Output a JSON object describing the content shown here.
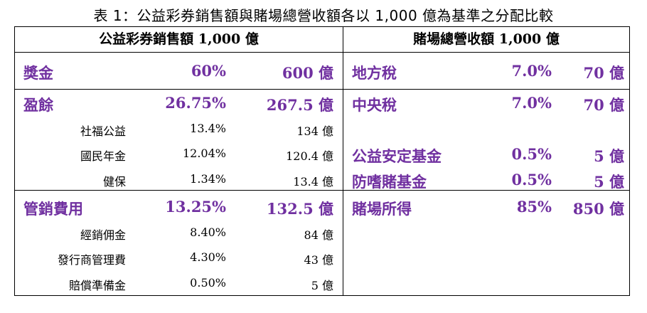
{
  "caption": "表 1：公益彩券銷售額與賭場總營收額各以 1,000 億為基準之分配比較",
  "left_header": "公益彩券銷售額 1,000 億",
  "right_header": "賭場總營收額 1,000 億",
  "left": {
    "prize": {
      "label": "獎金",
      "pct": "60%",
      "amount": "600 億"
    },
    "surplus": {
      "label": "盈餘",
      "pct": "26.75%",
      "amount": "267.5 億"
    },
    "surplus_items": [
      {
        "label": "社福公益",
        "pct": "13.4%",
        "amount": "134 億"
      },
      {
        "label": "國民年金",
        "pct": "12.04%",
        "amount": "120.4 億"
      },
      {
        "label": "健保",
        "pct": "1.34%",
        "amount": "13.4 億"
      }
    ],
    "expense": {
      "label": "管銷費用",
      "pct": "13.25%",
      "amount": "132.5 億"
    },
    "expense_items": [
      {
        "label": "經銷佣金",
        "pct": "8.40%",
        "amount": "84 億"
      },
      {
        "label": "發行商管理費",
        "pct": "4.30%",
        "amount": "43 億"
      },
      {
        "label": "賠償準備金",
        "pct": "0.50%",
        "amount": "5 億"
      }
    ]
  },
  "right": {
    "local_tax": {
      "label": "地方稅",
      "pct": "7.0%",
      "amount": "70 億"
    },
    "central_tax": {
      "label": "中央稅",
      "pct": "7.0%",
      "amount": "70 億"
    },
    "stability_fund": {
      "label": "公益安定基金",
      "pct": "0.5%",
      "amount": "5 億"
    },
    "addiction_fund": {
      "label": "防嗜賭基金",
      "pct": "0.5%",
      "amount": "5 億"
    },
    "casino_income": {
      "label": "賭場所得",
      "pct": "85%",
      "amount": "850 億"
    }
  }
}
